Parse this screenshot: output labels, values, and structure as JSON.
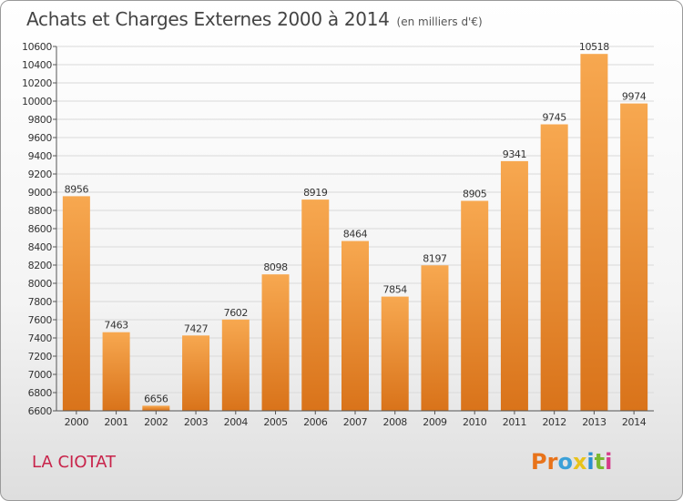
{
  "header": {
    "title": "Achats et Charges Externes 2000 à 2014",
    "unit": "(en milliers d'€)"
  },
  "footer": {
    "commune": "LA CIOTAT",
    "logo_text": "Proxiti"
  },
  "colors": {
    "bar_light": "#f7a850",
    "bar_dark": "#d9731a",
    "commune_text": "#c8234a",
    "logo_letters": [
      "#e8731a",
      "#e8731a",
      "#3aa0d8",
      "#e8c21a",
      "#2a8fd0",
      "#7ab830",
      "#d63a8a"
    ]
  },
  "chart_data": {
    "type": "bar",
    "title": "Achats et Charges Externes 2000 à 2014",
    "subtitle": "(en milliers d'€)",
    "categories": [
      "2000",
      "2001",
      "2002",
      "2003",
      "2004",
      "2005",
      "2006",
      "2007",
      "2008",
      "2009",
      "2010",
      "2011",
      "2012",
      "2013",
      "2014"
    ],
    "values": [
      8956,
      7463,
      6656,
      7427,
      7602,
      8098,
      8919,
      8464,
      7854,
      8197,
      8905,
      9341,
      9745,
      10518,
      9974
    ],
    "ylim": [
      6600,
      10600
    ],
    "yticks": [
      6600,
      6800,
      7000,
      7200,
      7400,
      7600,
      7800,
      8000,
      8200,
      8400,
      8600,
      8800,
      9000,
      9200,
      9400,
      9600,
      9800,
      10000,
      10200,
      10400,
      10600
    ],
    "grid": true,
    "legend": "none"
  }
}
